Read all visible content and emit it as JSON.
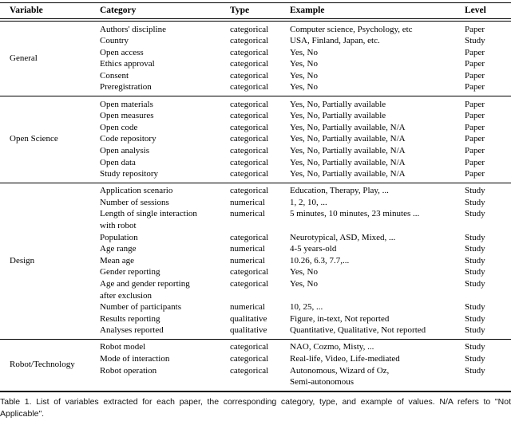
{
  "table": {
    "columns": [
      "Variable",
      "Category",
      "Type",
      "Example",
      "Level"
    ],
    "sections": [
      {
        "variable": "General",
        "rows": [
          {
            "category": "Authors' discipline",
            "type": "categorical",
            "example": "Computer science, Psychology, etc",
            "level": "Paper"
          },
          {
            "category": "Country",
            "type": "categorical",
            "example": "USA, Finland, Japan, etc.",
            "level": "Study"
          },
          {
            "category": "Open access",
            "type": "categorical",
            "example": "Yes, No",
            "level": "Paper"
          },
          {
            "category": "Ethics approval",
            "type": "categorical",
            "example": "Yes, No",
            "level": "Paper"
          },
          {
            "category": "Consent",
            "type": "categorical",
            "example": "Yes, No",
            "level": "Paper"
          },
          {
            "category": "Preregistration",
            "type": "categorical",
            "example": "Yes, No",
            "level": "Paper"
          }
        ]
      },
      {
        "variable": "Open Science",
        "rows": [
          {
            "category": "Open materials",
            "type": "categorical",
            "example": "Yes, No, Partially available",
            "level": "Paper"
          },
          {
            "category": "Open measures",
            "type": "categorical",
            "example": "Yes, No, Partially available",
            "level": "Paper"
          },
          {
            "category": "Open code",
            "type": "categorical",
            "example": "Yes, No, Partially available, N/A",
            "level": "Paper"
          },
          {
            "category": "Code repository",
            "type": "categorical",
            "example": "Yes, No, Partially available, N/A",
            "level": "Paper"
          },
          {
            "category": "Open analysis",
            "type": "categorical",
            "example": "Yes, No, Partially available, N/A",
            "level": "Paper"
          },
          {
            "category": "Open data",
            "type": "categorical",
            "example": "Yes, No, Partially available, N/A",
            "level": "Paper"
          },
          {
            "category": "Study repository",
            "type": "categorical",
            "example": "Yes, No, Partially available, N/A",
            "level": "Paper"
          }
        ]
      },
      {
        "variable": "Design",
        "rows": [
          {
            "category": "Application scenario",
            "type": "categorical",
            "example": "Education, Therapy, Play, ...",
            "level": "Study"
          },
          {
            "category": "Number of sessions",
            "type": "numerical",
            "example": "1, 2, 10, ...",
            "level": "Study"
          },
          {
            "category": "Length of single interaction\nwith robot",
            "type": "numerical",
            "example": "5 minutes, 10 minutes, 23 minutes ...",
            "level": "Study"
          },
          {
            "category": "Population",
            "type": "categorical",
            "example": "Neurotypical, ASD, Mixed, ...",
            "level": "Study"
          },
          {
            "category": "Age range",
            "type": "numerical",
            "example": "4-5 years-old",
            "level": "Study"
          },
          {
            "category": "Mean age",
            "type": "numerical",
            "example": "10.26, 6.3, 7.7,...",
            "level": "Study"
          },
          {
            "category": "Gender reporting",
            "type": "categorical",
            "example": "Yes, No",
            "level": "Study"
          },
          {
            "category": "Age and gender reporting\nafter exclusion",
            "type": "categorical",
            "example": "Yes, No",
            "level": "Study"
          },
          {
            "category": "Number of participants",
            "type": "numerical",
            "example": "10, 25, ...",
            "level": "Study"
          },
          {
            "category": "Results reporting",
            "type": "qualitative",
            "example": "Figure, in-text, Not reported",
            "level": "Study"
          },
          {
            "category": "Analyses reported",
            "type": "qualitative",
            "example": "Quantitative, Qualitative, Not reported",
            "level": "Study"
          }
        ]
      },
      {
        "variable": "Robot/Technology",
        "rows": [
          {
            "category": "Robot model",
            "type": "categorical",
            "example": "NAO, Cozmo, Misty, ...",
            "level": "Study"
          },
          {
            "category": "Mode of interaction",
            "type": "categorical",
            "example": "Real-life, Video, Life-mediated",
            "level": "Study"
          },
          {
            "category": "Robot operation",
            "type": "categorical",
            "example": "Autonomous, Wizard of Oz,\nSemi-autonomous",
            "level": "Study"
          }
        ]
      }
    ]
  },
  "caption": "Table 1. List of variables extracted for each paper, the corresponding category, type, and example of values. N/A refers to \"Not Applicable\"."
}
